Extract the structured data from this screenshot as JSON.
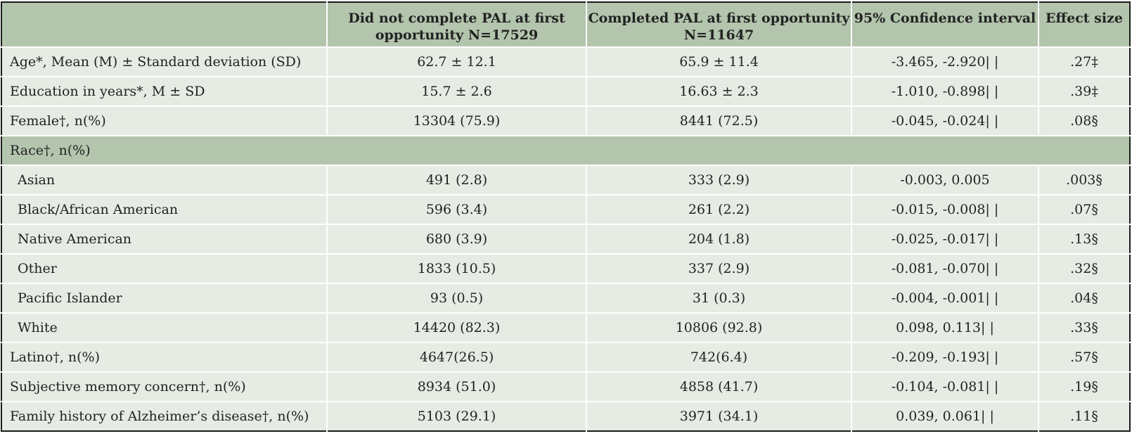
{
  "header": {
    "col1": "",
    "col2": "Did not complete PAL at first opportunity N=17529",
    "col3": "Completed PAL at first opportunity N=11647",
    "col4": "95% Confidence interval",
    "col5": "Effect size"
  },
  "rows": [
    {
      "label": "Age*, Mean (M) ± Standard deviation (SD)",
      "not_completed": "62.7 ± 12.1",
      "completed": "65.9 ± 11.4",
      "ci": "-3.465, -2.920| |",
      "effect": ".27‡"
    },
    {
      "label": "Education in years*, M ± SD",
      "not_completed": "15.7 ± 2.6",
      "completed": "16.63 ± 2.3",
      "ci": "-1.010, -0.898| |",
      "effect": ".39‡"
    },
    {
      "label": "Female†, n(%)",
      "not_completed": "13304 (75.9)",
      "completed": "8441 (72.5)",
      "ci": "-0.045, -0.024| |",
      "effect": ".08§"
    },
    {
      "label": "Race†, n(%)"
    },
    {
      "label": "Asian",
      "not_completed": "491 (2.8)",
      "completed": "333 (2.9)",
      "ci": "-0.003, 0.005",
      "effect": ".003§"
    },
    {
      "label": "Black/African American",
      "not_completed": "596 (3.4)",
      "completed": "261 (2.2)",
      "ci": "-0.015, -0.008| |",
      "effect": ".07§"
    },
    {
      "label": "Native American",
      "not_completed": "680 (3.9)",
      "completed": "204 (1.8)",
      "ci": "-0.025, -0.017| |",
      "effect": ".13§"
    },
    {
      "label": "Other",
      "not_completed": "1833 (10.5)",
      "completed": "337 (2.9)",
      "ci": "-0.081, -0.070| |",
      "effect": ".32§"
    },
    {
      "label": "Pacific Islander",
      "not_completed": "93 (0.5)",
      "completed": "31 (0.3)",
      "ci": "-0.004, -0.001| |",
      "effect": ".04§"
    },
    {
      "label": "White",
      "not_completed": "14420 (82.3)",
      "completed": "10806 (92.8)",
      "ci": "0.098, 0.113| |",
      "effect": ".33§"
    },
    {
      "label": "Latino†, n(%)",
      "not_completed": "4647(26.5)",
      "completed": "742(6.4)",
      "ci": "-0.209, -0.193| |",
      "effect": ".57§"
    },
    {
      "label": "Subjective memory concern†, n(%)",
      "not_completed": "8934 (51.0)",
      "completed": "4858 (41.7)",
      "ci": "-0.104, -0.081| |",
      "effect": ".19§"
    },
    {
      "label": "Family history of Alzheimer’s disease†, n(%)",
      "not_completed": "5103 (29.1)",
      "completed": "3971 (34.1)",
      "ci": "0.039, 0.061| |",
      "effect": ".11§"
    }
  ]
}
